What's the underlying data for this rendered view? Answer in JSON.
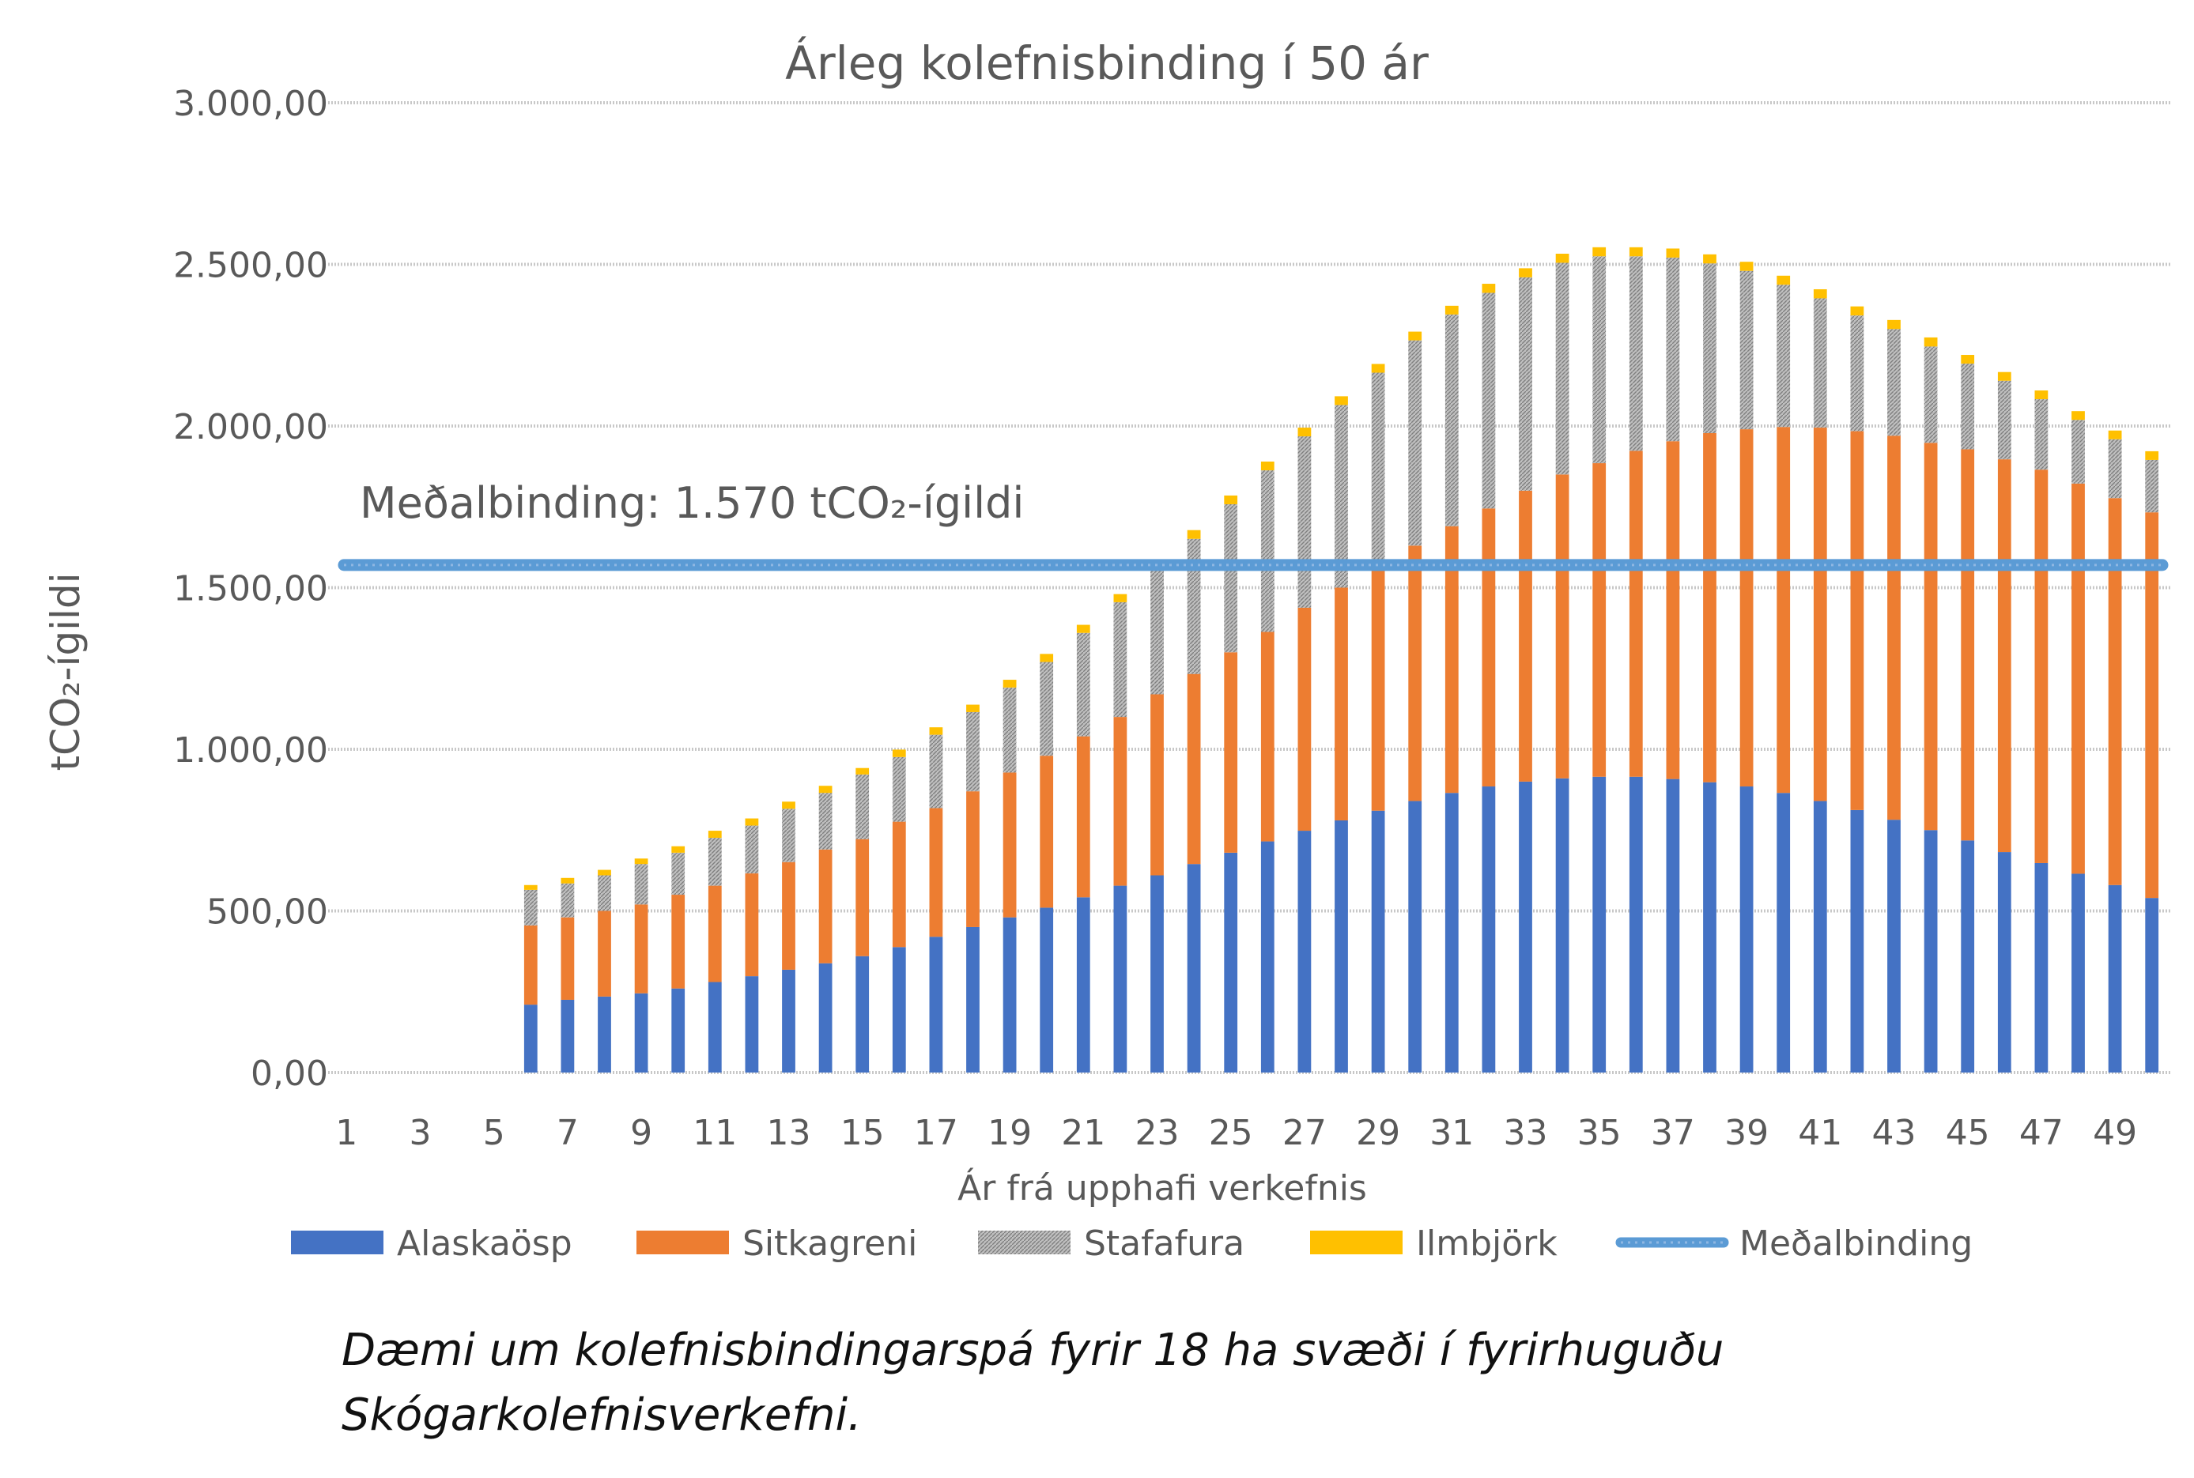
{
  "chart_data": {
    "type": "bar",
    "stacked": true,
    "title": "Árleg kolefnisbinding í 50 ár",
    "xlabel": "Ár frá upphafi verkefnis",
    "ylabel": "tCO₂-ígildi",
    "ylim": [
      0,
      3000
    ],
    "ytick_values": [
      0,
      500,
      1000,
      1500,
      2000,
      2500,
      3000
    ],
    "yticks": [
      "0,00",
      "500,00",
      "1.000,00",
      "1.500,00",
      "2.000,00",
      "2.500,00",
      "3.000,00"
    ],
    "grid": true,
    "legend_position": "bottom",
    "categories": [
      1,
      2,
      3,
      4,
      5,
      6,
      7,
      8,
      9,
      10,
      11,
      12,
      13,
      14,
      15,
      16,
      17,
      18,
      19,
      20,
      21,
      22,
      23,
      24,
      25,
      26,
      27,
      28,
      29,
      30,
      31,
      32,
      33,
      34,
      35,
      36,
      37,
      38,
      39,
      40,
      41,
      42,
      43,
      44,
      45,
      46,
      47,
      48,
      49,
      50
    ],
    "xtick_labels": [
      "1",
      "3",
      "5",
      "7",
      "9",
      "11",
      "13",
      "15",
      "17",
      "19",
      "21",
      "23",
      "25",
      "27",
      "29",
      "31",
      "33",
      "35",
      "37",
      "39",
      "41",
      "43",
      "45",
      "47",
      "49"
    ],
    "series": [
      {
        "name": "Alaskaösp",
        "color": "#4472C4",
        "values": [
          0,
          0,
          0,
          0,
          0,
          210,
          225,
          235,
          245,
          260,
          280,
          298,
          318,
          338,
          360,
          388,
          420,
          450,
          480,
          510,
          542,
          578,
          610,
          645,
          680,
          715,
          748,
          780,
          810,
          840,
          865,
          885,
          900,
          910,
          915,
          915,
          908,
          898,
          885,
          865,
          840,
          812,
          782,
          750,
          718,
          682,
          648,
          615,
          580,
          540
        ]
      },
      {
        "name": "Sitkagreni",
        "color": "#ED7D31",
        "values": [
          0,
          0,
          0,
          0,
          0,
          245,
          255,
          265,
          275,
          290,
          298,
          318,
          333,
          352,
          362,
          388,
          398,
          420,
          448,
          470,
          498,
          522,
          560,
          588,
          620,
          648,
          690,
          720,
          760,
          790,
          825,
          860,
          900,
          940,
          970,
          1008,
          1045,
          1080,
          1105,
          1132,
          1155,
          1172,
          1188,
          1198,
          1210,
          1215,
          1217,
          1207,
          1197,
          1193
        ]
      },
      {
        "name": "Stafafura",
        "color": "#A5A5A5",
        "values": [
          0,
          0,
          0,
          0,
          0,
          110,
          105,
          110,
          125,
          130,
          148,
          148,
          165,
          175,
          200,
          200,
          227,
          245,
          263,
          290,
          320,
          355,
          385,
          418,
          458,
          500,
          530,
          565,
          595,
          635,
          655,
          667,
          660,
          655,
          640,
          602,
          568,
          525,
          490,
          440,
          400,
          358,
          330,
          298,
          265,
          243,
          218,
          197,
          182,
          162
        ]
      },
      {
        "name": "Ilmbjörk",
        "color": "#FFC000",
        "values": [
          0,
          0,
          0,
          0,
          0,
          15,
          17,
          17,
          17,
          20,
          22,
          22,
          22,
          22,
          20,
          23,
          23,
          23,
          24,
          25,
          25,
          25,
          27,
          27,
          27,
          27,
          27,
          27,
          27,
          27,
          27,
          28,
          28,
          28,
          28,
          28,
          28,
          28,
          28,
          28,
          28,
          28,
          28,
          28,
          27,
          27,
          27,
          27,
          27,
          27
        ]
      }
    ],
    "average": {
      "name": "Meðalbinding",
      "value": 1570,
      "color": "#5B9BD5",
      "annotation": "Meðalbinding: 1.570 tCO₂-ígildi"
    }
  },
  "caption": {
    "line1": "Dæmi um kolefnisbindingarspá fyrir 18 ha svæði í fyrirhuguðu",
    "line2": "Skógarkolefnisverkefni."
  }
}
